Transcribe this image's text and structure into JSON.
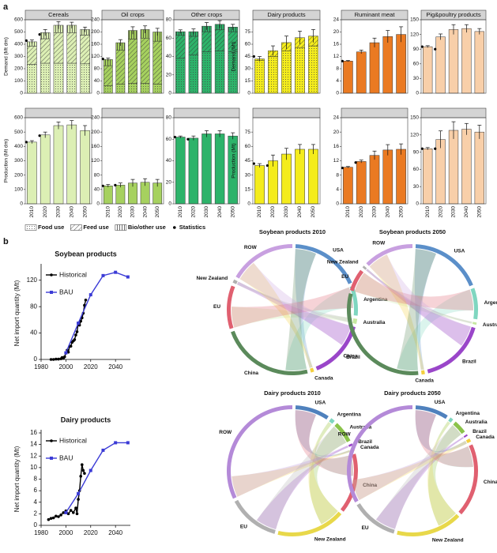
{
  "panel_labels": [
    "a",
    "b"
  ],
  "legend_statistics": "Statistics",
  "chart_data": [
    {
      "type": "bar",
      "title": "Cereals",
      "ylabel": "Demand (Mt dm)",
      "ylim": [
        0,
        600
      ],
      "yticks": [
        0,
        100,
        200,
        300,
        400,
        500,
        600
      ],
      "series": [
        {
          "name": "Food use",
          "color": "#dcefb4",
          "pattern": "dots",
          "values": [
            235,
            245,
            245,
            245,
            240
          ]
        },
        {
          "name": "Feed use",
          "color": "#dcefb4",
          "pattern": "hatch",
          "values": [
            150,
            200,
            250,
            250,
            235
          ]
        },
        {
          "name": "Bio/other use",
          "color": "#dcefb4",
          "pattern": "vlines",
          "values": [
            35,
            50,
            60,
            60,
            45
          ]
        }
      ],
      "errors": [
        15,
        25,
        30,
        25,
        20
      ],
      "statistics": [
        430,
        480,
        null,
        null,
        null
      ]
    },
    {
      "type": "bar",
      "ylabel": "Production (Mt dm)",
      "ylim": [
        0,
        600
      ],
      "yticks": [
        0,
        100,
        200,
        300,
        400,
        500,
        600
      ],
      "categories": [
        "2010",
        "2020",
        "2030",
        "2040",
        "2050"
      ],
      "series": [
        {
          "color": "#dcefb4",
          "values": [
            430,
            480,
            545,
            550,
            510
          ]
        }
      ],
      "errors": [
        10,
        20,
        25,
        30,
        35
      ],
      "statistics": [
        430,
        475,
        null,
        null,
        null
      ]
    },
    {
      "type": "bar",
      "title": "Oil crops",
      "ylim": [
        0,
        240
      ],
      "yticks": [
        0,
        40,
        80,
        120,
        160,
        200,
        240
      ],
      "series": [
        {
          "name": "Food use",
          "color": "#a6d15f",
          "pattern": "dots",
          "values": [
            25,
            30,
            32,
            32,
            30
          ]
        },
        {
          "name": "Feed use",
          "color": "#a6d15f",
          "pattern": "hatch",
          "values": [
            65,
            110,
            145,
            148,
            140
          ]
        },
        {
          "name": "Bio/other use",
          "color": "#a6d15f",
          "pattern": "vlines",
          "values": [
            20,
            25,
            28,
            28,
            30
          ]
        }
      ],
      "errors": [
        5,
        10,
        12,
        12,
        12
      ],
      "statistics": [
        112,
        null,
        null,
        null,
        null
      ]
    },
    {
      "type": "bar",
      "ylim": [
        0,
        240
      ],
      "yticks": [
        0,
        40,
        80,
        120,
        160,
        200,
        240
      ],
      "categories": [
        "2010",
        "2020",
        "2030",
        "2040",
        "2050"
      ],
      "series": [
        {
          "color": "#a6d15f",
          "values": [
            50,
            52,
            58,
            60,
            58
          ]
        }
      ],
      "errors": [
        4,
        6,
        10,
        10,
        10
      ],
      "statistics": [
        50,
        52,
        null,
        null,
        null
      ]
    },
    {
      "type": "bar",
      "title": "Other crops",
      "ylim": [
        0,
        80
      ],
      "yticks": [
        0,
        20,
        40,
        60,
        80
      ],
      "series": [
        {
          "name": "Food use",
          "color": "#2db36a",
          "pattern": "dots",
          "values": [
            38,
            42,
            45,
            46,
            45
          ]
        },
        {
          "name": "Feed use",
          "color": "#2db36a",
          "pattern": "hatch",
          "values": [
            25,
            20,
            22,
            23,
            22
          ]
        },
        {
          "name": "Bio/other use",
          "color": "#2db36a",
          "pattern": "vlines",
          "values": [
            4,
            5,
            6,
            6,
            5
          ]
        }
      ],
      "errors": [
        2,
        3,
        4,
        4,
        3
      ],
      "statistics": [
        null,
        null,
        null,
        null,
        null
      ]
    },
    {
      "type": "bar",
      "ylim": [
        0,
        80
      ],
      "yticks": [
        0,
        20,
        40,
        60,
        80
      ],
      "categories": [
        "2010",
        "2020",
        "2030",
        "2040",
        "2050"
      ],
      "series": [
        {
          "color": "#2db36a",
          "values": [
            62,
            61,
            65,
            65,
            63
          ]
        }
      ],
      "errors": [
        1,
        2,
        3,
        3,
        3
      ],
      "statistics": [
        62,
        60,
        null,
        null,
        null
      ]
    },
    {
      "type": "bar",
      "title": "Dairy products",
      "ylabel": "Demand (Mt)",
      "ylim": [
        0,
        90
      ],
      "yticks": [
        0,
        15,
        30,
        45,
        60,
        75
      ],
      "series": [
        {
          "name": "Food use",
          "color": "#f4ec1c",
          "pattern": "dots",
          "values": [
            40,
            45,
            52,
            56,
            58
          ]
        },
        {
          "name": "Feed use",
          "color": "#f4ec1c",
          "pattern": "hatch",
          "values": [
            2,
            7,
            10,
            12,
            12
          ]
        }
      ],
      "errors": [
        3,
        6,
        8,
        8,
        8
      ],
      "statistics": [
        45,
        null,
        null,
        null,
        null
      ]
    },
    {
      "type": "bar",
      "ylabel": "Production (Mt)",
      "ylim": [
        0,
        90
      ],
      "yticks": [
        0,
        15,
        30,
        45,
        60,
        75
      ],
      "categories": [
        "2010",
        "2020",
        "2030",
        "2040",
        "2050"
      ],
      "series": [
        {
          "color": "#f4ec1c",
          "values": [
            40,
            45,
            52,
            57,
            57
          ]
        }
      ],
      "errors": [
        2,
        6,
        6,
        5,
        5
      ],
      "statistics": [
        42,
        40,
        null,
        null,
        null
      ]
    },
    {
      "type": "bar",
      "title": "Ruminant meat",
      "ylim": [
        0,
        24
      ],
      "yticks": [
        0,
        4,
        8,
        12,
        16,
        20,
        24
      ],
      "series": [
        {
          "color": "#ea7a22",
          "values": [
            10.5,
            13.5,
            16.5,
            18.5,
            19.2
          ]
        }
      ],
      "errors": [
        0.2,
        0.6,
        1.5,
        2,
        2.5
      ],
      "statistics": [
        10.5,
        null,
        null,
        null,
        null
      ]
    },
    {
      "type": "bar",
      "ylim": [
        0,
        24
      ],
      "yticks": [
        0,
        4,
        8,
        12,
        16,
        20,
        24
      ],
      "categories": [
        "2010",
        "2020",
        "2030",
        "2040",
        "2050"
      ],
      "series": [
        {
          "color": "#ea7a22",
          "values": [
            10.2,
            11.8,
            13.5,
            15,
            15.2
          ]
        }
      ],
      "errors": [
        0.2,
        0.4,
        1.2,
        1.5,
        1.5
      ],
      "statistics": [
        10,
        11.5,
        null,
        null,
        null
      ]
    },
    {
      "type": "bar",
      "title": "Pig&poultry products",
      "ylim": [
        0,
        150
      ],
      "yticks": [
        0,
        30,
        60,
        90,
        120,
        150
      ],
      "series": [
        {
          "color": "#f8cfa9",
          "values": [
            95,
            115,
            130,
            132,
            126
          ]
        }
      ],
      "errors": [
        2,
        6,
        10,
        8,
        6
      ],
      "statistics": [
        95,
        90,
        null,
        null,
        null
      ]
    },
    {
      "type": "bar",
      "ylim": [
        0,
        150
      ],
      "yticks": [
        0,
        30,
        60,
        90,
        120,
        150
      ],
      "categories": [
        "2010",
        "2020",
        "2030",
        "2040",
        "2050"
      ],
      "series": [
        {
          "color": "#f8cfa9",
          "values": [
            96,
            112,
            128,
            130,
            125
          ]
        }
      ],
      "errors": [
        2,
        15,
        15,
        10,
        12
      ],
      "statistics": [
        96,
        96,
        null,
        null,
        null
      ]
    },
    {
      "type": "line",
      "title": "Soybean products",
      "ylabel": "Net import quantity (Mt)",
      "xlim": [
        1980,
        2052
      ],
      "xticks": [
        1980,
        2000,
        2020,
        2040
      ],
      "ylim": [
        0,
        140
      ],
      "yticks": [
        0,
        40,
        80,
        120
      ],
      "series": [
        {
          "name": "Historical",
          "color": "#000000",
          "marker": "circle",
          "x": [
            1988,
            1990,
            1992,
            1994,
            1996,
            1997,
            1998,
            1999,
            2000,
            2001,
            2002,
            2003,
            2004,
            2005,
            2006,
            2007,
            2008,
            2009,
            2010,
            2011,
            2012,
            2013,
            2014,
            2015,
            2016
          ],
          "values": [
            0,
            0,
            0.5,
            0.5,
            1,
            3,
            2,
            4,
            10,
            14,
            11,
            20,
            20,
            26,
            28,
            30,
            37,
            42,
            55,
            52,
            58,
            63,
            70,
            82,
            90
          ]
        },
        {
          "name": "BAU",
          "color": "#3b3bd6",
          "marker": "square",
          "x": [
            2000,
            2010,
            2020,
            2030,
            2040,
            2050
          ],
          "values": [
            10,
            55,
            98,
            127,
            132,
            125
          ]
        }
      ]
    },
    {
      "type": "line",
      "title": "Dairy products",
      "ylabel": "Net import quantity (Mt)",
      "xlim": [
        1980,
        2052
      ],
      "xticks": [
        1980,
        2000,
        2020,
        2040
      ],
      "ylim": [
        0,
        16
      ],
      "yticks": [
        0,
        2,
        4,
        6,
        8,
        10,
        12,
        14,
        16
      ],
      "series": [
        {
          "name": "Historical",
          "color": "#000000",
          "marker": "circle",
          "x": [
            1986,
            1988,
            1990,
            1992,
            1994,
            1996,
            1998,
            2000,
            2002,
            2004,
            2006,
            2008,
            2009,
            2010,
            2011,
            2012,
            2013,
            2014,
            2015
          ],
          "values": [
            1.0,
            1.2,
            1.3,
            1.6,
            1.5,
            1.8,
            2.2,
            2.5,
            2.0,
            2.6,
            2.2,
            3.0,
            2.0,
            4.5,
            6.0,
            8.5,
            10.5,
            9.5,
            9.0
          ]
        },
        {
          "name": "BAU",
          "color": "#3b3bd6",
          "marker": "square",
          "x": [
            2000,
            2010,
            2020,
            2030,
            2040,
            2050
          ],
          "values": [
            2.2,
            5.5,
            9.5,
            13,
            14.3,
            14.3
          ]
        }
      ]
    },
    {
      "type": "chord",
      "title": "Soybean products 2010",
      "regions": [
        {
          "name": "USA",
          "value": 42,
          "color": "#5b8fc9"
        },
        {
          "name": "Argentina",
          "value": 18,
          "color": "#7fd6c0"
        },
        {
          "name": "Australia",
          "value": 3,
          "color": "#c7e8a0"
        },
        {
          "name": "Brazil",
          "value": 35,
          "color": "#9a46c9"
        },
        {
          "name": "Canada",
          "value": 2,
          "color": "#f4d03f"
        },
        {
          "name": "China",
          "value": 56,
          "color": "#5b8a5b",
          "label_color": "#e02020"
        },
        {
          "name": "EU",
          "value": 26,
          "color": "#e06070"
        },
        {
          "name": "New Zealand",
          "value": 2,
          "color": "#b0b0b0"
        },
        {
          "name": "ROW",
          "value": 40,
          "color": "#c8a0e0"
        }
      ]
    },
    {
      "type": "chord",
      "title": "Soybean products 2050",
      "regions": [
        {
          "name": "USA",
          "value": 65,
          "color": "#5b8fc9"
        },
        {
          "name": "Argentina",
          "value": 28,
          "color": "#7fd6c0"
        },
        {
          "name": "Australia",
          "value": 2,
          "color": "#c7e8a0"
        },
        {
          "name": "Brazil",
          "value": 60,
          "color": "#9a46c9"
        },
        {
          "name": "Canada",
          "value": 3,
          "color": "#f4d03f"
        },
        {
          "name": "China",
          "value": 110,
          "color": "#5b8a5b",
          "label_color": "#e02020"
        },
        {
          "name": "EU",
          "value": 20,
          "color": "#e06070"
        },
        {
          "name": "New Zealand",
          "value": 2,
          "color": "#b0b0b0"
        },
        {
          "name": "ROW",
          "value": 45,
          "color": "#c8a0e0"
        }
      ]
    },
    {
      "type": "chord",
      "title": "Dairy products 2010",
      "regions": [
        {
          "name": "USA",
          "value": 8,
          "color": "#4f81bd"
        },
        {
          "name": "Argentina",
          "value": 1,
          "color": "#7fd6c0"
        },
        {
          "name": "Australia",
          "value": 5,
          "color": "#8bc34a"
        },
        {
          "name": "Brazil",
          "value": 0.5,
          "color": "#9a46c9"
        },
        {
          "name": "Canada",
          "value": 0.5,
          "color": "#f4d03f"
        },
        {
          "name": "China",
          "value": 14,
          "color": "#e06070",
          "label_color": "#e02020"
        },
        {
          "name": "New Zealand",
          "value": 16,
          "color": "#e8d84a"
        },
        {
          "name": "EU",
          "value": 12,
          "color": "#b0b0b0"
        },
        {
          "name": "ROW",
          "value": 30,
          "color": "#b48ad8"
        }
      ]
    },
    {
      "type": "chord",
      "title": "Dairy products 2050",
      "regions": [
        {
          "name": "USA",
          "value": 10,
          "color": "#4f81bd"
        },
        {
          "name": "Argentina",
          "value": 1,
          "color": "#7fd6c0"
        },
        {
          "name": "Australia",
          "value": 4,
          "color": "#8bc34a"
        },
        {
          "name": "Brazil",
          "value": 0.5,
          "color": "#9a46c9"
        },
        {
          "name": "Canada",
          "value": 1,
          "color": "#f4d03f"
        },
        {
          "name": "China",
          "value": 22,
          "color": "#e06070",
          "label_color": "#e02020"
        },
        {
          "name": "New Zealand",
          "value": 20,
          "color": "#e8d84a"
        },
        {
          "name": "EU",
          "value": 14,
          "color": "#b0b0b0"
        },
        {
          "name": "ROW",
          "value": 40,
          "color": "#b48ad8"
        }
      ]
    }
  ]
}
